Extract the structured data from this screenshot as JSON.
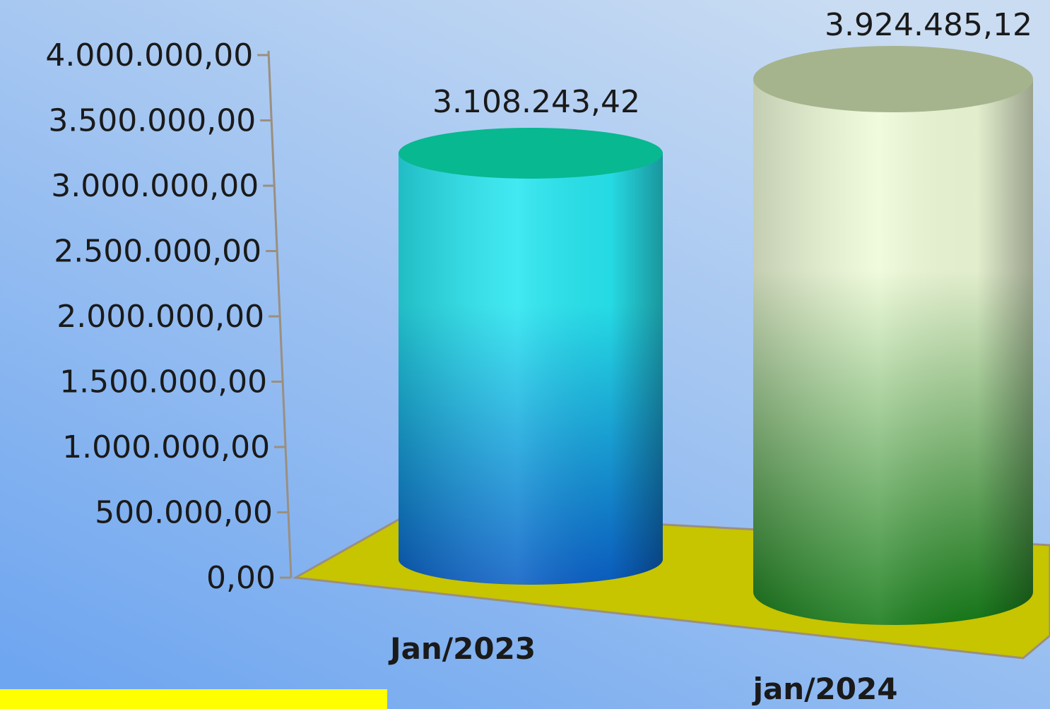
{
  "chart_data": {
    "type": "bar",
    "style": "3d-cylinder",
    "categories": [
      "Jan/2023",
      "jan/2024"
    ],
    "values": [
      3108243.42,
      3924485.12
    ],
    "data_labels": [
      "3.108.243,42",
      "3.924.485,12"
    ],
    "title": "",
    "xlabel": "",
    "ylabel": "",
    "ylim": [
      0,
      4000000
    ],
    "y_ticks": [
      0,
      500000,
      1000000,
      1500000,
      2000000,
      2500000,
      3000000,
      3500000,
      4000000
    ],
    "y_tick_labels": [
      "0,00",
      "500.000,00",
      "1.000.000,00",
      "1.500.000,00",
      "2.000.000,00",
      "2.500.000,00",
      "3.000.000,00",
      "3.500.000,00",
      "4.000.000,00"
    ],
    "grid": false,
    "legend": "none",
    "colors": {
      "background_top": "#c9dcf2",
      "background_bottom": "#6fa6f0",
      "floor": "#c7c400",
      "axis": "#9a8f80",
      "bar1_top": "#08b890",
      "bar1_light": "#28e6f0",
      "bar1_dark": "#0b5fc6",
      "bar2_top": "#a6b48e",
      "bar2_light": "#eefad8",
      "bar2_dark": "#157a18",
      "corner_box": "#ffff00"
    }
  }
}
